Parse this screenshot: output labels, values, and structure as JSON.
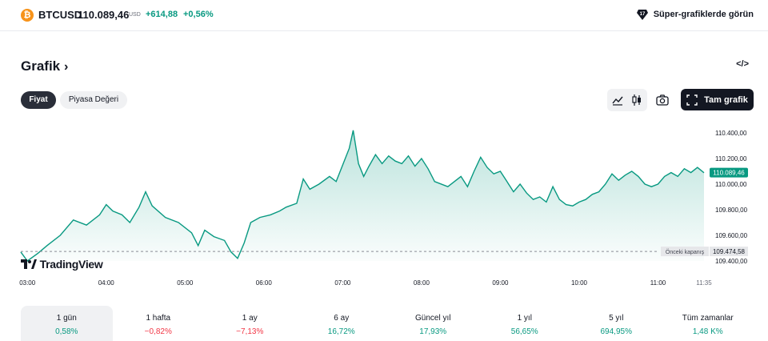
{
  "header": {
    "coin_glyph": "₿",
    "symbol": "BTCUSD",
    "price": "110.089,46",
    "currency": "USD",
    "change": "+614,88",
    "change_pct": "+0,56%",
    "super_label": "Süper-grafiklerde görün",
    "super_icon": "tradingview-diamond-icon"
  },
  "section": {
    "title": "Grafik",
    "title_chevron": "›",
    "embed_icon": "code-icon",
    "embed_glyph": "</>"
  },
  "tabs": [
    {
      "label": "Fiyat",
      "active": true
    },
    {
      "label": "Piyasa Değeri",
      "active": false
    }
  ],
  "toolbar": {
    "full_label": "Tam grafik",
    "icons": [
      "line-chart-icon",
      "candles-icon",
      "camera-icon",
      "fullscreen-icon"
    ]
  },
  "chart_data": {
    "type": "area",
    "x_ticks": [
      "03:00",
      "04:00",
      "05:00",
      "06:00",
      "07:00",
      "08:00",
      "09:00",
      "10:00",
      "11:00",
      "11:35"
    ],
    "y_ticks": [
      "110.400,00",
      "110.200,00",
      "110.000,00",
      "109.800,00",
      "109.600,00",
      "109.400,00"
    ],
    "ylim": [
      109400,
      110450
    ],
    "current_label": "110.089,46",
    "current_value": 110089.46,
    "prev_close_name": "Önceki kapanış",
    "prev_close_label": "109.474,58",
    "prev_close_value": 109474.58,
    "brand": "TradingView",
    "color": "#089981",
    "series": [
      {
        "x": "02:55",
        "y": 109470
      },
      {
        "x": "03:00",
        "y": 109400
      },
      {
        "x": "03:08",
        "y": 109460
      },
      {
        "x": "03:15",
        "y": 109520
      },
      {
        "x": "03:25",
        "y": 109600
      },
      {
        "x": "03:35",
        "y": 109720
      },
      {
        "x": "03:45",
        "y": 109680
      },
      {
        "x": "03:55",
        "y": 109760
      },
      {
        "x": "04:00",
        "y": 109840
      },
      {
        "x": "04:05",
        "y": 109790
      },
      {
        "x": "04:12",
        "y": 109760
      },
      {
        "x": "04:18",
        "y": 109700
      },
      {
        "x": "04:25",
        "y": 109820
      },
      {
        "x": "04:30",
        "y": 109940
      },
      {
        "x": "04:35",
        "y": 109830
      },
      {
        "x": "04:45",
        "y": 109740
      },
      {
        "x": "04:55",
        "y": 109700
      },
      {
        "x": "05:05",
        "y": 109620
      },
      {
        "x": "05:10",
        "y": 109520
      },
      {
        "x": "05:15",
        "y": 109640
      },
      {
        "x": "05:22",
        "y": 109590
      },
      {
        "x": "05:30",
        "y": 109560
      },
      {
        "x": "05:35",
        "y": 109470
      },
      {
        "x": "05:40",
        "y": 109420
      },
      {
        "x": "05:45",
        "y": 109540
      },
      {
        "x": "05:50",
        "y": 109700
      },
      {
        "x": "05:57",
        "y": 109740
      },
      {
        "x": "06:05",
        "y": 109760
      },
      {
        "x": "06:12",
        "y": 109790
      },
      {
        "x": "06:17",
        "y": 109820
      },
      {
        "x": "06:25",
        "y": 109850
      },
      {
        "x": "06:30",
        "y": 110040
      },
      {
        "x": "06:35",
        "y": 109960
      },
      {
        "x": "06:42",
        "y": 110000
      },
      {
        "x": "06:50",
        "y": 110060
      },
      {
        "x": "06:55",
        "y": 110020
      },
      {
        "x": "07:00",
        "y": 110150
      },
      {
        "x": "07:05",
        "y": 110280
      },
      {
        "x": "07:08",
        "y": 110420
      },
      {
        "x": "07:12",
        "y": 110160
      },
      {
        "x": "07:16",
        "y": 110060
      },
      {
        "x": "07:20",
        "y": 110140
      },
      {
        "x": "07:25",
        "y": 110230
      },
      {
        "x": "07:30",
        "y": 110160
      },
      {
        "x": "07:35",
        "y": 110220
      },
      {
        "x": "07:40",
        "y": 110180
      },
      {
        "x": "07:45",
        "y": 110160
      },
      {
        "x": "07:50",
        "y": 110220
      },
      {
        "x": "07:55",
        "y": 110140
      },
      {
        "x": "08:00",
        "y": 110200
      },
      {
        "x": "08:05",
        "y": 110120
      },
      {
        "x": "08:10",
        "y": 110020
      },
      {
        "x": "08:20",
        "y": 109980
      },
      {
        "x": "08:30",
        "y": 110060
      },
      {
        "x": "08:35",
        "y": 109980
      },
      {
        "x": "08:40",
        "y": 110100
      },
      {
        "x": "08:45",
        "y": 110210
      },
      {
        "x": "08:50",
        "y": 110130
      },
      {
        "x": "08:55",
        "y": 110080
      },
      {
        "x": "09:00",
        "y": 110100
      },
      {
        "x": "09:05",
        "y": 110020
      },
      {
        "x": "09:10",
        "y": 109940
      },
      {
        "x": "09:15",
        "y": 110000
      },
      {
        "x": "09:20",
        "y": 109930
      },
      {
        "x": "09:25",
        "y": 109880
      },
      {
        "x": "09:30",
        "y": 109900
      },
      {
        "x": "09:35",
        "y": 109860
      },
      {
        "x": "09:40",
        "y": 109980
      },
      {
        "x": "09:45",
        "y": 109880
      },
      {
        "x": "09:50",
        "y": 109840
      },
      {
        "x": "09:55",
        "y": 109830
      },
      {
        "x": "10:00",
        "y": 109860
      },
      {
        "x": "10:05",
        "y": 109880
      },
      {
        "x": "10:10",
        "y": 109920
      },
      {
        "x": "10:15",
        "y": 109940
      },
      {
        "x": "10:20",
        "y": 110000
      },
      {
        "x": "10:25",
        "y": 110080
      },
      {
        "x": "10:30",
        "y": 110030
      },
      {
        "x": "10:35",
        "y": 110070
      },
      {
        "x": "10:40",
        "y": 110100
      },
      {
        "x": "10:45",
        "y": 110060
      },
      {
        "x": "10:50",
        "y": 110000
      },
      {
        "x": "10:55",
        "y": 109980
      },
      {
        "x": "11:00",
        "y": 110000
      },
      {
        "x": "11:05",
        "y": 110060
      },
      {
        "x": "11:10",
        "y": 110090
      },
      {
        "x": "11:15",
        "y": 110060
      },
      {
        "x": "11:20",
        "y": 110120
      },
      {
        "x": "11:25",
        "y": 110090
      },
      {
        "x": "11:30",
        "y": 110130
      },
      {
        "x": "11:35",
        "y": 110089
      }
    ]
  },
  "periods": [
    {
      "label": "1 gün",
      "value": "0,58%",
      "trend": "pos",
      "active": true
    },
    {
      "label": "1 hafta",
      "value": "−0,82%",
      "trend": "neg",
      "active": false
    },
    {
      "label": "1 ay",
      "value": "−7,13%",
      "trend": "neg",
      "active": false
    },
    {
      "label": "6 ay",
      "value": "16,72%",
      "trend": "pos",
      "active": false
    },
    {
      "label": "Güncel yıl",
      "value": "17,93%",
      "trend": "pos",
      "active": false
    },
    {
      "label": "1 yıl",
      "value": "56,65%",
      "trend": "pos",
      "active": false
    },
    {
      "label": "5 yıl",
      "value": "694,95%",
      "trend": "pos",
      "active": false
    },
    {
      "label": "Tüm zamanlar",
      "value": "1,48 K%",
      "trend": "pos",
      "active": false
    }
  ]
}
